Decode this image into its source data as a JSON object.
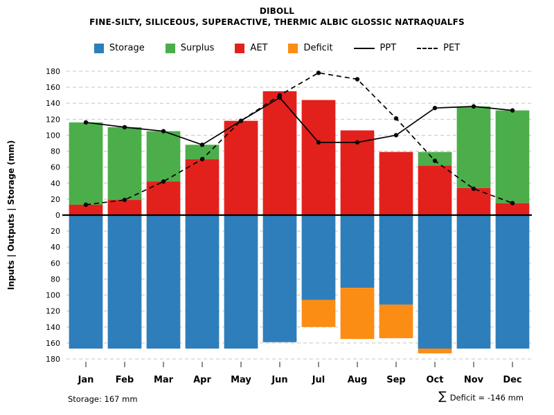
{
  "title": "DIBOLL",
  "subtitle": "FINE-SILTY, SILICEOUS, SUPERACTIVE, THERMIC ALBIC GLOSSIC NATRAQUALFS",
  "footer": {
    "storage_note": "Storage: 167 mm",
    "sigma": "∑",
    "deficit_note": "Deficit = -146 mm"
  },
  "colors": {
    "storage_blue": "#2e7ebb",
    "surplus_green": "#4cae4a",
    "aet_red": "#e2211c",
    "deficit_orange": "#fb8d15",
    "line_black": "#000000",
    "grid_gray": "#c4c4c4"
  },
  "legend": {
    "items": [
      {
        "label": "Storage",
        "swatch": "square",
        "color": "#2e7ebb"
      },
      {
        "label": "Surplus",
        "swatch": "square",
        "color": "#4cae4a"
      },
      {
        "label": "AET",
        "swatch": "square",
        "color": "#e2211c"
      },
      {
        "label": "Deficit",
        "swatch": "square",
        "color": "#fb8d15"
      },
      {
        "label": "PPT",
        "swatch": "line"
      },
      {
        "label": "PET",
        "swatch": "dashed-line"
      }
    ]
  },
  "chart_data": {
    "type": "bar",
    "title": "DIBOLL",
    "subtitle": "FINE-SILTY, SILICEOUS, SUPERACTIVE, THERMIC ALBIC GLOSSIC NATRAQUALFS",
    "categories": [
      "Jan",
      "Feb",
      "Mar",
      "Apr",
      "May",
      "Jun",
      "Jul",
      "Aug",
      "Sep",
      "Oct",
      "Nov",
      "Dec"
    ],
    "series": [
      {
        "name": "AET",
        "direction": "up",
        "color": "#e2211c",
        "values": [
          13,
          19,
          42,
          70,
          118,
          155,
          144,
          106,
          79,
          62,
          34,
          15
        ]
      },
      {
        "name": "Surplus",
        "direction": "up",
        "color": "#4cae4a",
        "values": [
          103,
          91,
          63,
          18,
          0,
          0,
          0,
          0,
          0,
          17,
          102,
          116
        ]
      },
      {
        "name": "Storage",
        "direction": "down",
        "color": "#2e7ebb",
        "values": [
          167,
          167,
          167,
          167,
          167,
          159,
          106,
          91,
          112,
          167,
          167,
          167
        ]
      },
      {
        "name": "Deficit",
        "direction": "down",
        "color": "#fb8d15",
        "values": [
          0,
          0,
          0,
          0,
          0,
          0,
          34,
          64,
          42,
          6,
          0,
          0
        ]
      }
    ],
    "lines": [
      {
        "name": "PPT",
        "style": "solid",
        "values": [
          116,
          110,
          105,
          88,
          118,
          147,
          91,
          91,
          100,
          134,
          136,
          131
        ]
      },
      {
        "name": "PET",
        "style": "dashed",
        "values": [
          13,
          19,
          42,
          70,
          118,
          150,
          178,
          170,
          121,
          68,
          33,
          15
        ]
      }
    ],
    "xlabel": "",
    "ylabel": "Inputs | Outputs | Storage  (mm)",
    "ylim": [
      -180,
      180
    ],
    "ytick_step": 20,
    "ytick_labels_absolute": true,
    "grid": true,
    "grid_style": "dashed",
    "legend_position": "top",
    "annotations": [
      "Storage: 167 mm",
      "∑ Deficit = -146 mm"
    ]
  }
}
